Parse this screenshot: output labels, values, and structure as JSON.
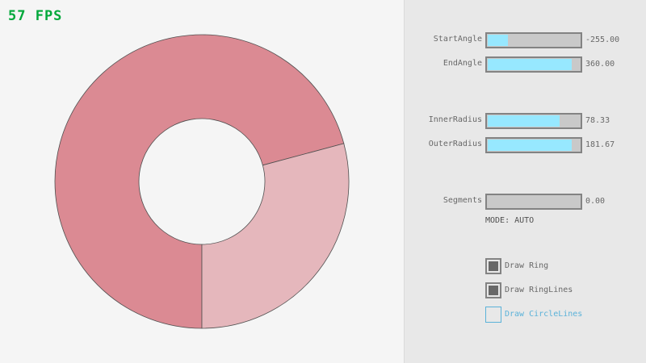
{
  "fps": "57 FPS",
  "colors": {
    "ring_primary": "#db8a93",
    "ring_overlap_light": "#e5b7bc",
    "ring_lines": "#505050",
    "slider_fill": "#97e8ff",
    "fps": "#00a83a"
  },
  "controls": {
    "sliders": [
      {
        "label": "StartAngle",
        "value": "-255.00",
        "fraction": 0.22
      },
      {
        "label": "EndAngle",
        "value": "360.00",
        "fraction": 0.91
      },
      {
        "label": "InnerRadius",
        "value": "78.33",
        "fraction": 0.78
      },
      {
        "label": "OuterRadius",
        "value": "181.67",
        "fraction": 0.91
      },
      {
        "label": "Segments",
        "value": "0.00",
        "fraction": 0
      }
    ],
    "mode": "MODE: AUTO",
    "checkboxes": [
      {
        "label": "Draw Ring",
        "checked": true
      },
      {
        "label": "Draw RingLines",
        "checked": true
      },
      {
        "label": "Draw CircleLines",
        "checked": false
      }
    ]
  }
}
